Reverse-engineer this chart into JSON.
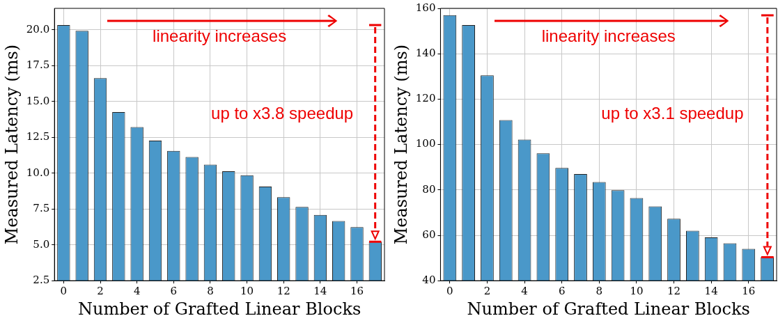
{
  "chart_data": [
    {
      "type": "bar",
      "categories": [
        "0",
        null,
        "2",
        null,
        "4",
        null,
        "6",
        null,
        "8",
        null,
        "10",
        null,
        "12",
        null,
        "14",
        null,
        "16",
        null
      ],
      "values": [
        20.34,
        19.93,
        16.63,
        14.26,
        13.22,
        12.27,
        11.56,
        11.13,
        10.6,
        10.13,
        9.86,
        9.07,
        8.33,
        7.65,
        7.09,
        6.66,
        6.24,
        5.22
      ],
      "color": "#4a98c9",
      "xlabel": "Number of Grafted Linear Blocks",
      "ylabel": "Measured Latency (ms)",
      "ylim": [
        2.5,
        21.5
      ],
      "yticks": [
        2.5,
        {
          "value": 5,
          "label": "5.0"
        },
        7.5,
        {
          "value": 10,
          "label": "10.0"
        },
        12.5,
        {
          "value": 15,
          "label": "15.0"
        },
        17.5,
        {
          "value": 20,
          "label": "20.0"
        }
      ],
      "grid": true,
      "annotations": [
        "linearity increases",
        "up to x3.8 speedup"
      ]
    },
    {
      "type": "bar",
      "categories": [
        "0",
        null,
        "2",
        null,
        "4",
        null,
        "6",
        null,
        "8",
        null,
        "10",
        null,
        "12",
        null,
        "14",
        null,
        "16",
        null
      ],
      "values": [
        157,
        152.6,
        130.5,
        110.8,
        102.2,
        96.1,
        89.7,
        87,
        83.5,
        79.9,
        76.4,
        72.7,
        67.3,
        62,
        59.1,
        56.5,
        54,
        50.4
      ],
      "color": "#4a98c9",
      "xlabel": "Number of Grafted Linear Blocks",
      "ylabel": "Measured Latency (ms)",
      "ylim": [
        40,
        160
      ],
      "yticks": [
        40,
        60,
        80,
        100,
        120,
        140,
        160
      ],
      "grid": true,
      "annotations": [
        "linearity increases",
        "up to x3.1 speedup"
      ]
    }
  ]
}
